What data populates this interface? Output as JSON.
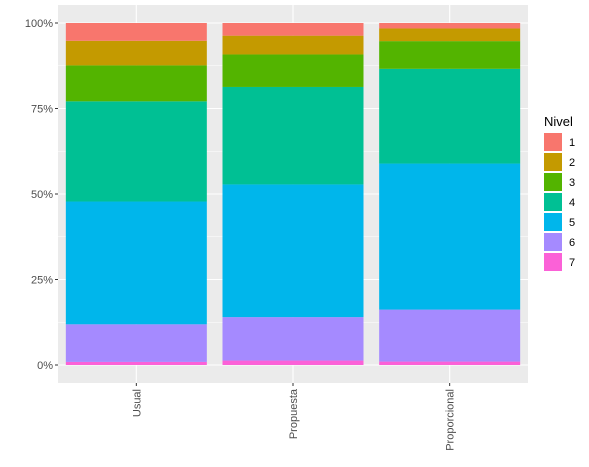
{
  "chart_data": {
    "type": "bar",
    "stacked": true,
    "percent": true,
    "categories": [
      "Usual",
      "Propuesta",
      "Proporcional"
    ],
    "ylim": [
      0,
      1
    ],
    "y_ticks": [
      0,
      0.25,
      0.5,
      0.75,
      1
    ],
    "y_tick_labels": [
      "0%",
      "25%",
      "50%",
      "75%",
      "100%"
    ],
    "x_tick_label_rotation": "vertical",
    "grid": true,
    "background": "#EBEBEB",
    "legend": {
      "title": "Nivel",
      "position": "right"
    },
    "series": [
      {
        "name": "1",
        "color": "#F8766D",
        "values": [
          0.052,
          0.037,
          0.016
        ]
      },
      {
        "name": "2",
        "color": "#C49A00",
        "values": [
          0.072,
          0.055,
          0.037
        ]
      },
      {
        "name": "3",
        "color": "#53B400",
        "values": [
          0.105,
          0.095,
          0.081
        ]
      },
      {
        "name": "4",
        "color": "#00C094",
        "values": [
          0.293,
          0.285,
          0.277
        ]
      },
      {
        "name": "5",
        "color": "#00B6EB",
        "values": [
          0.359,
          0.388,
          0.427
        ]
      },
      {
        "name": "6",
        "color": "#A58AFF",
        "values": [
          0.11,
          0.127,
          0.152
        ]
      },
      {
        "name": "7",
        "color": "#FB61D7",
        "values": [
          0.009,
          0.013,
          0.01
        ]
      }
    ]
  }
}
